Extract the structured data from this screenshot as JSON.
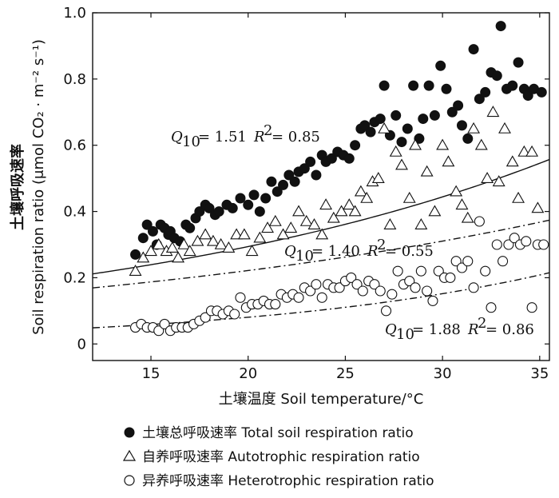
{
  "chart_data": {
    "type": "scatter",
    "xlim": [
      12,
      35.5
    ],
    "ylim": [
      -0.05,
      1.0
    ],
    "xticks": [
      15,
      20,
      25,
      30,
      35
    ],
    "yticks": [
      0,
      0.2,
      0.4,
      0.6,
      0.8,
      1.0
    ],
    "ytick_labels": [
      "0",
      "0.2",
      "0.4",
      "0.6",
      "0.8",
      "1.0"
    ],
    "xlabel": "土壤温度 Soil temperature/°C",
    "ylabel_cn": "土壤呼吸速率",
    "ylabel_en": "Soil respiration ratio (μmol CO₂ · m⁻² s⁻¹)",
    "series": [
      {
        "name": "土壤总呼吸速率 Total soil respiration ratio",
        "marker": "filled-circle",
        "fit": {
          "a": 0.129,
          "b": 0.0412,
          "Q10": "1.51",
          "R2": "0.85",
          "style": "solid"
        },
        "points": [
          [
            14.2,
            0.27
          ],
          [
            14.6,
            0.32
          ],
          [
            14.8,
            0.36
          ],
          [
            15.1,
            0.34
          ],
          [
            15.3,
            0.3
          ],
          [
            15.5,
            0.36
          ],
          [
            15.7,
            0.35
          ],
          [
            15.9,
            0.33
          ],
          [
            16.0,
            0.34
          ],
          [
            16.2,
            0.32
          ],
          [
            16.5,
            0.31
          ],
          [
            16.8,
            0.36
          ],
          [
            17.0,
            0.35
          ],
          [
            17.3,
            0.38
          ],
          [
            17.5,
            0.4
          ],
          [
            17.8,
            0.42
          ],
          [
            18.0,
            0.41
          ],
          [
            18.3,
            0.39
          ],
          [
            18.5,
            0.4
          ],
          [
            18.9,
            0.42
          ],
          [
            19.2,
            0.41
          ],
          [
            19.6,
            0.44
          ],
          [
            20.0,
            0.42
          ],
          [
            20.3,
            0.45
          ],
          [
            20.6,
            0.4
          ],
          [
            20.9,
            0.44
          ],
          [
            21.2,
            0.49
          ],
          [
            21.5,
            0.46
          ],
          [
            21.8,
            0.48
          ],
          [
            22.1,
            0.51
          ],
          [
            22.4,
            0.49
          ],
          [
            22.6,
            0.52
          ],
          [
            22.9,
            0.53
          ],
          [
            23.2,
            0.55
          ],
          [
            23.5,
            0.51
          ],
          [
            23.8,
            0.57
          ],
          [
            24.0,
            0.55
          ],
          [
            24.3,
            0.56
          ],
          [
            24.6,
            0.58
          ],
          [
            24.9,
            0.57
          ],
          [
            25.2,
            0.56
          ],
          [
            25.5,
            0.6
          ],
          [
            25.8,
            0.65
          ],
          [
            26.0,
            0.66
          ],
          [
            26.3,
            0.64
          ],
          [
            26.5,
            0.67
          ],
          [
            26.8,
            0.68
          ],
          [
            27.0,
            0.78
          ],
          [
            27.3,
            0.63
          ],
          [
            27.6,
            0.69
          ],
          [
            27.9,
            0.61
          ],
          [
            28.2,
            0.65
          ],
          [
            28.5,
            0.78
          ],
          [
            28.8,
            0.62
          ],
          [
            29.0,
            0.68
          ],
          [
            29.3,
            0.78
          ],
          [
            29.6,
            0.69
          ],
          [
            29.9,
            0.84
          ],
          [
            30.2,
            0.77
          ],
          [
            30.5,
            0.7
          ],
          [
            30.8,
            0.72
          ],
          [
            31.0,
            0.66
          ],
          [
            31.3,
            0.62
          ],
          [
            31.6,
            0.89
          ],
          [
            31.9,
            0.74
          ],
          [
            32.2,
            0.76
          ],
          [
            32.5,
            0.82
          ],
          [
            32.8,
            0.81
          ],
          [
            33.0,
            0.96
          ],
          [
            33.3,
            0.77
          ],
          [
            33.6,
            0.78
          ],
          [
            33.9,
            0.85
          ],
          [
            34.2,
            0.77
          ],
          [
            34.4,
            0.75
          ],
          [
            34.7,
            0.77
          ],
          [
            35.1,
            0.76
          ]
        ]
      },
      {
        "name": "自养呼吸速率 Autotrophic respiration ratio",
        "marker": "open-triangle",
        "fit": {
          "a": 0.113,
          "b": 0.0337,
          "Q10": "1.40",
          "R2": "0.55",
          "style": "dashdot"
        },
        "points": [
          [
            14.2,
            0.22
          ],
          [
            14.6,
            0.26
          ],
          [
            15.0,
            0.28
          ],
          [
            15.4,
            0.3
          ],
          [
            15.8,
            0.28
          ],
          [
            16.1,
            0.29
          ],
          [
            16.4,
            0.26
          ],
          [
            16.7,
            0.3
          ],
          [
            17.0,
            0.28
          ],
          [
            17.4,
            0.31
          ],
          [
            17.8,
            0.33
          ],
          [
            18.2,
            0.31
          ],
          [
            18.6,
            0.3
          ],
          [
            19.0,
            0.29
          ],
          [
            19.4,
            0.33
          ],
          [
            19.8,
            0.33
          ],
          [
            20.2,
            0.28
          ],
          [
            20.6,
            0.32
          ],
          [
            21.0,
            0.35
          ],
          [
            21.4,
            0.37
          ],
          [
            21.8,
            0.33
          ],
          [
            22.2,
            0.35
          ],
          [
            22.6,
            0.4
          ],
          [
            23.0,
            0.37
          ],
          [
            23.4,
            0.36
          ],
          [
            23.8,
            0.33
          ],
          [
            24.0,
            0.42
          ],
          [
            24.4,
            0.38
          ],
          [
            24.8,
            0.4
          ],
          [
            25.2,
            0.42
          ],
          [
            25.5,
            0.4
          ],
          [
            25.8,
            0.46
          ],
          [
            26.1,
            0.44
          ],
          [
            26.4,
            0.49
          ],
          [
            26.7,
            0.5
          ],
          [
            27.0,
            0.65
          ],
          [
            27.3,
            0.36
          ],
          [
            27.6,
            0.58
          ],
          [
            27.9,
            0.54
          ],
          [
            28.3,
            0.44
          ],
          [
            28.6,
            0.6
          ],
          [
            28.9,
            0.36
          ],
          [
            29.2,
            0.52
          ],
          [
            29.6,
            0.4
          ],
          [
            30.0,
            0.6
          ],
          [
            30.3,
            0.55
          ],
          [
            30.7,
            0.46
          ],
          [
            31.0,
            0.42
          ],
          [
            31.3,
            0.38
          ],
          [
            31.6,
            0.65
          ],
          [
            32.0,
            0.6
          ],
          [
            32.3,
            0.5
          ],
          [
            32.6,
            0.7
          ],
          [
            32.9,
            0.49
          ],
          [
            33.2,
            0.65
          ],
          [
            33.6,
            0.55
          ],
          [
            33.9,
            0.44
          ],
          [
            34.2,
            0.58
          ],
          [
            34.6,
            0.58
          ],
          [
            34.9,
            0.41
          ]
        ]
      },
      {
        "name": "异养呼吸速率 Heterotrophic respiration ratio",
        "marker": "open-circle",
        "fit": {
          "a": 0.0228,
          "b": 0.0632,
          "Q10": "1.88",
          "R2": "0.86",
          "style": "dashdot"
        },
        "points": [
          [
            14.2,
            0.05
          ],
          [
            14.5,
            0.06
          ],
          [
            14.8,
            0.05
          ],
          [
            15.1,
            0.05
          ],
          [
            15.4,
            0.04
          ],
          [
            15.7,
            0.06
          ],
          [
            16.0,
            0.04
          ],
          [
            16.3,
            0.05
          ],
          [
            16.6,
            0.05
          ],
          [
            16.9,
            0.05
          ],
          [
            17.2,
            0.06
          ],
          [
            17.5,
            0.07
          ],
          [
            17.8,
            0.08
          ],
          [
            18.1,
            0.1
          ],
          [
            18.4,
            0.1
          ],
          [
            18.7,
            0.09
          ],
          [
            19.0,
            0.1
          ],
          [
            19.3,
            0.09
          ],
          [
            19.6,
            0.14
          ],
          [
            19.9,
            0.11
          ],
          [
            20.2,
            0.12
          ],
          [
            20.5,
            0.12
          ],
          [
            20.8,
            0.13
          ],
          [
            21.1,
            0.12
          ],
          [
            21.4,
            0.12
          ],
          [
            21.7,
            0.15
          ],
          [
            22.0,
            0.14
          ],
          [
            22.3,
            0.15
          ],
          [
            22.6,
            0.14
          ],
          [
            22.9,
            0.17
          ],
          [
            23.2,
            0.16
          ],
          [
            23.5,
            0.18
          ],
          [
            23.8,
            0.14
          ],
          [
            24.1,
            0.18
          ],
          [
            24.4,
            0.17
          ],
          [
            24.7,
            0.17
          ],
          [
            25.0,
            0.19
          ],
          [
            25.3,
            0.2
          ],
          [
            25.6,
            0.18
          ],
          [
            25.9,
            0.16
          ],
          [
            26.2,
            0.19
          ],
          [
            26.5,
            0.18
          ],
          [
            26.8,
            0.16
          ],
          [
            27.1,
            0.1
          ],
          [
            27.4,
            0.15
          ],
          [
            27.7,
            0.22
          ],
          [
            28.0,
            0.18
          ],
          [
            28.3,
            0.19
          ],
          [
            28.6,
            0.17
          ],
          [
            28.9,
            0.22
          ],
          [
            29.2,
            0.16
          ],
          [
            29.5,
            0.13
          ],
          [
            29.8,
            0.22
          ],
          [
            30.1,
            0.2
          ],
          [
            30.4,
            0.2
          ],
          [
            30.7,
            0.25
          ],
          [
            31.0,
            0.23
          ],
          [
            31.3,
            0.25
          ],
          [
            31.6,
            0.17
          ],
          [
            31.9,
            0.37
          ],
          [
            32.2,
            0.22
          ],
          [
            32.5,
            0.11
          ],
          [
            32.8,
            0.3
          ],
          [
            33.1,
            0.25
          ],
          [
            33.4,
            0.3
          ],
          [
            33.7,
            0.32
          ],
          [
            34.0,
            0.3
          ],
          [
            34.3,
            0.31
          ],
          [
            34.6,
            0.11
          ],
          [
            34.9,
            0.3
          ],
          [
            35.2,
            0.3
          ]
        ]
      }
    ],
    "annotations": [
      {
        "q_sym": "Q",
        "q_sub": "10",
        "q_val": "= 1.51",
        "r_sym": "R",
        "r_sup": "2",
        "r_val": "= 0.85"
      },
      {
        "q_sym": "Q",
        "q_sub": "10",
        "q_val": "= 1.40",
        "r_sym": "R",
        "r_sup": "2",
        "r_val": "= 0.55"
      },
      {
        "q_sym": "Q",
        "q_sub": "10",
        "q_val": "= 1.88",
        "r_sym": "R",
        "r_sup": "2",
        "r_val": "= 0.86"
      }
    ],
    "legend": {
      "position": "bottom",
      "items": [
        {
          "label": "土壤总呼吸速率 Total soil respiration ratio",
          "marker": "filled-circle"
        },
        {
          "label": "自养呼吸速率 Autotrophic respiration ratio",
          "marker": "open-triangle"
        },
        {
          "label": "异养呼吸速率 Heterotrophic respiration ratio",
          "marker": "open-circle"
        }
      ]
    }
  }
}
